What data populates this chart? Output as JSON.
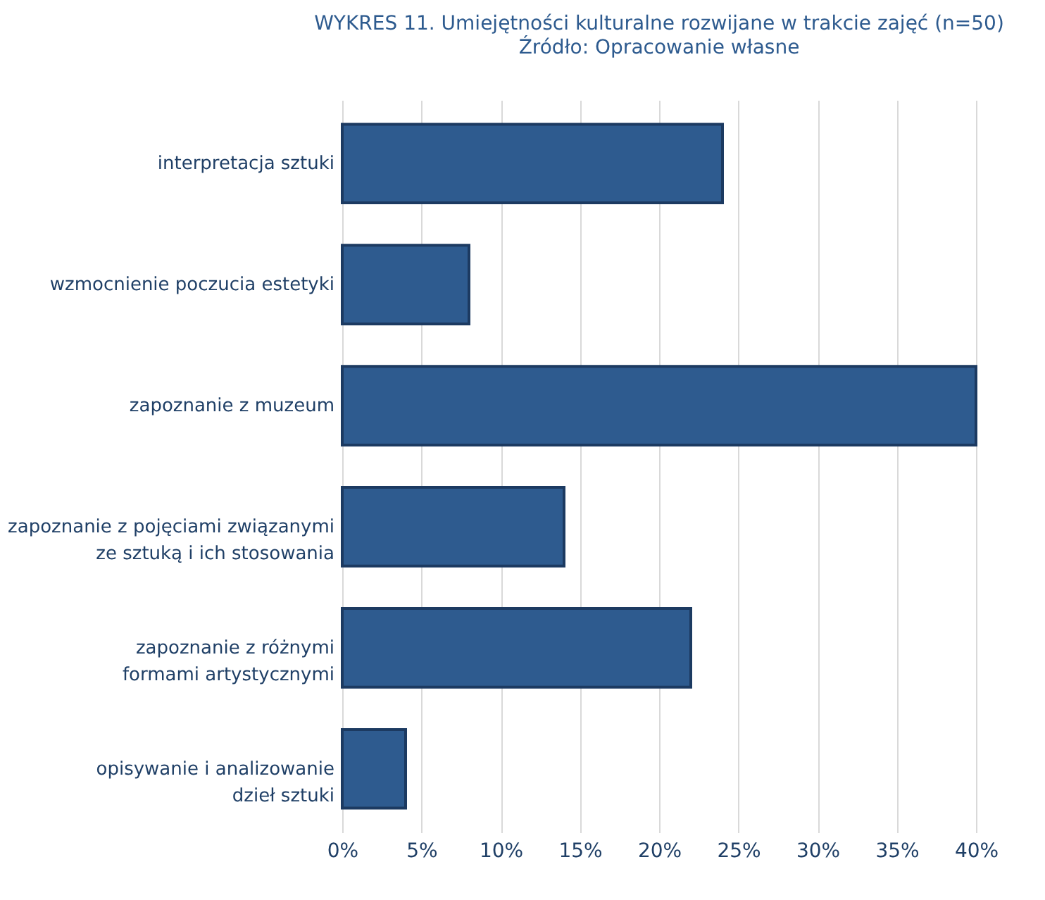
{
  "chart_data": {
    "type": "bar",
    "orientation": "horizontal",
    "title": "WYKRES 11. Umiejętności kulturalne rozwijane w trakcie zajęć (n=50)",
    "subtitle": "Źródło: Opracowanie własne",
    "categories": [
      "interpretacja sztuki",
      "wzmocnienie poczucia estetyki",
      "zapoznanie z muzeum",
      "zapoznanie z pojęciami związanymi\nze sztuką i ich stosowania",
      "zapoznanie z różnymi\nformami artystycznymi",
      "opisywanie i analizowanie\ndzieł sztuki"
    ],
    "values": [
      24,
      8,
      40,
      14,
      22,
      4
    ],
    "color": "#2e5b8f",
    "xlim": [
      0,
      40
    ],
    "xticks": [
      {
        "value": 0,
        "label": "0%"
      },
      {
        "value": 5,
        "label": "5%"
      },
      {
        "value": 10,
        "label": "10%"
      },
      {
        "value": 15,
        "label": "15%"
      },
      {
        "value": 20,
        "label": "20%"
      },
      {
        "value": 25,
        "label": "25%"
      },
      {
        "value": 30,
        "label": "30%"
      },
      {
        "value": 35,
        "label": "35%"
      },
      {
        "value": 40,
        "label": "40%"
      }
    ],
    "grid": "x"
  }
}
